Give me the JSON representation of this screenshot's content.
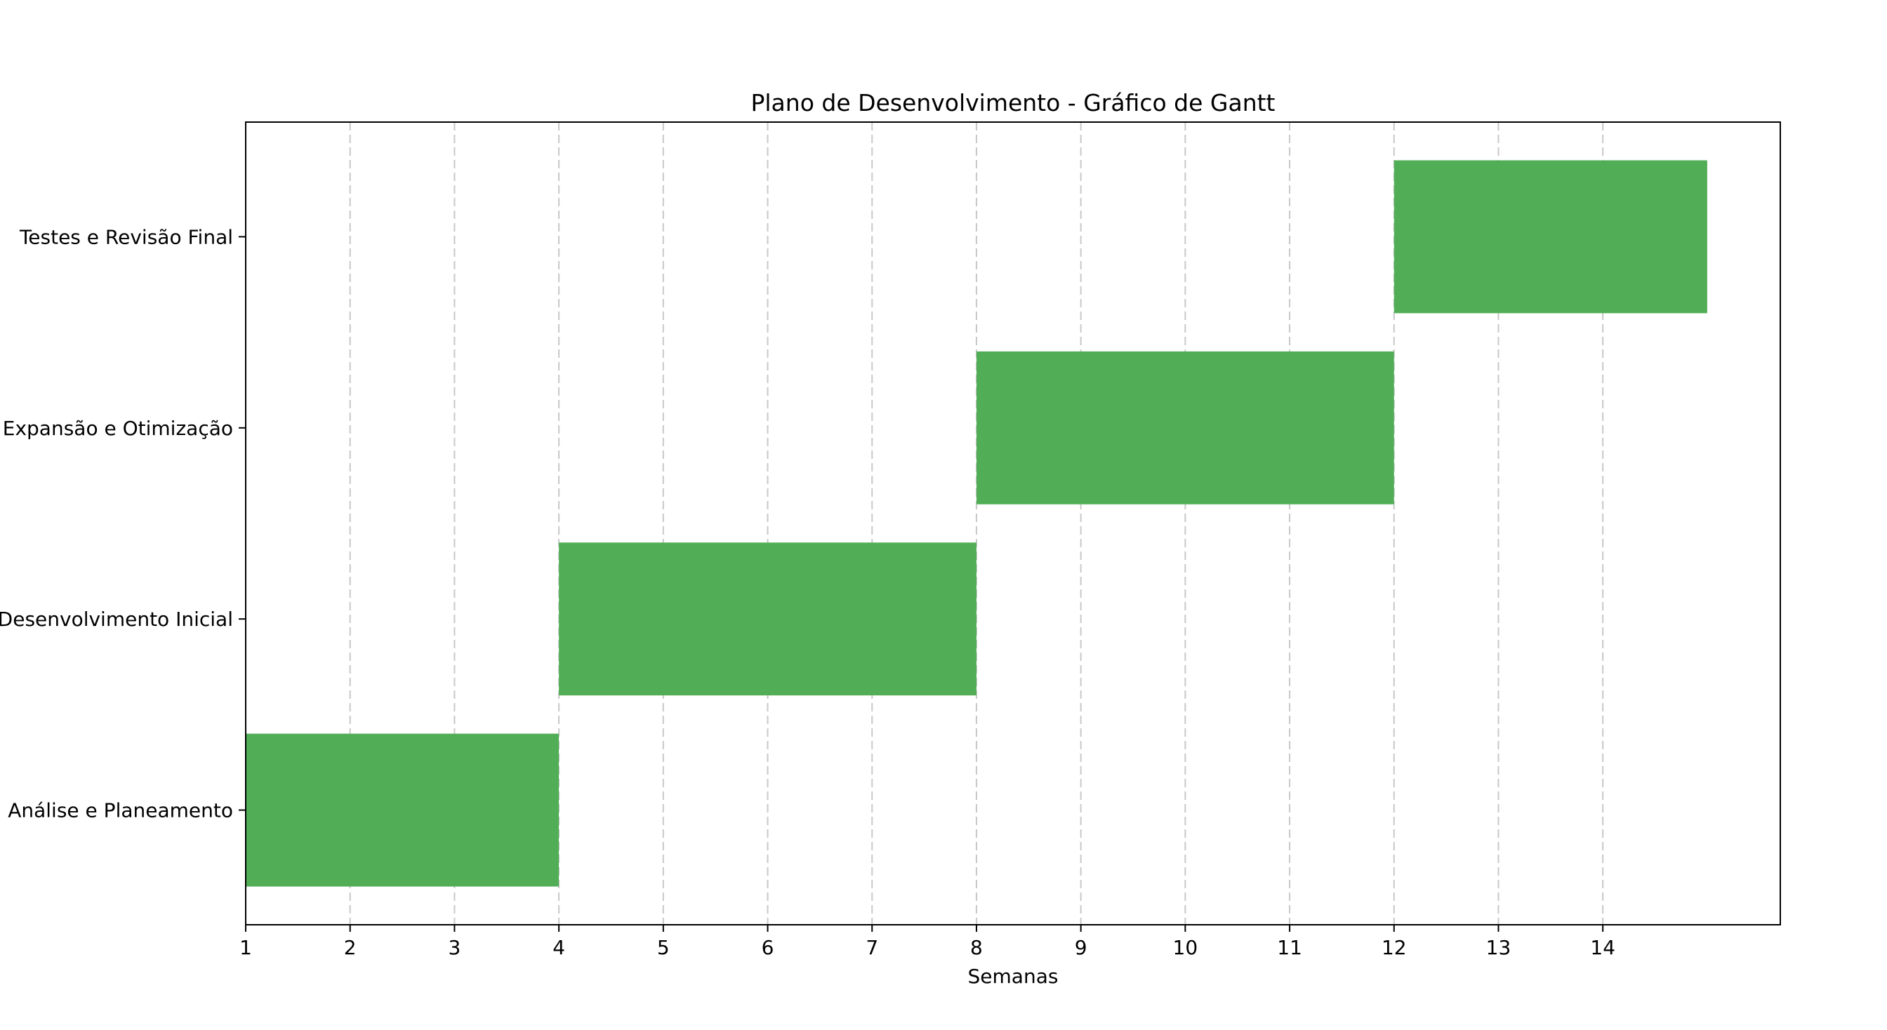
{
  "chart_data": {
    "type": "bar",
    "orientation": "horizontal",
    "subtype": "gantt",
    "title": "Plano de Desenvolvimento - Gráfico de Gantt",
    "xlabel": "Semanas",
    "ylabel": "",
    "xlim": [
      1,
      15.7
    ],
    "xticks": [
      1,
      2,
      3,
      4,
      5,
      6,
      7,
      8,
      9,
      10,
      11,
      12,
      13,
      14
    ],
    "grid": {
      "x": true,
      "y": false,
      "style": "dashed"
    },
    "bar_color": "#52ae56",
    "tasks": [
      {
        "name": "Análise e Planeamento",
        "start": 1,
        "end": 4
      },
      {
        "name": "Desenvolvimento Inicial",
        "start": 4,
        "end": 8
      },
      {
        "name": "Expansão e Otimização",
        "start": 8,
        "end": 12
      },
      {
        "name": "Testes e Revisão Final",
        "start": 12,
        "end": 15
      }
    ]
  }
}
